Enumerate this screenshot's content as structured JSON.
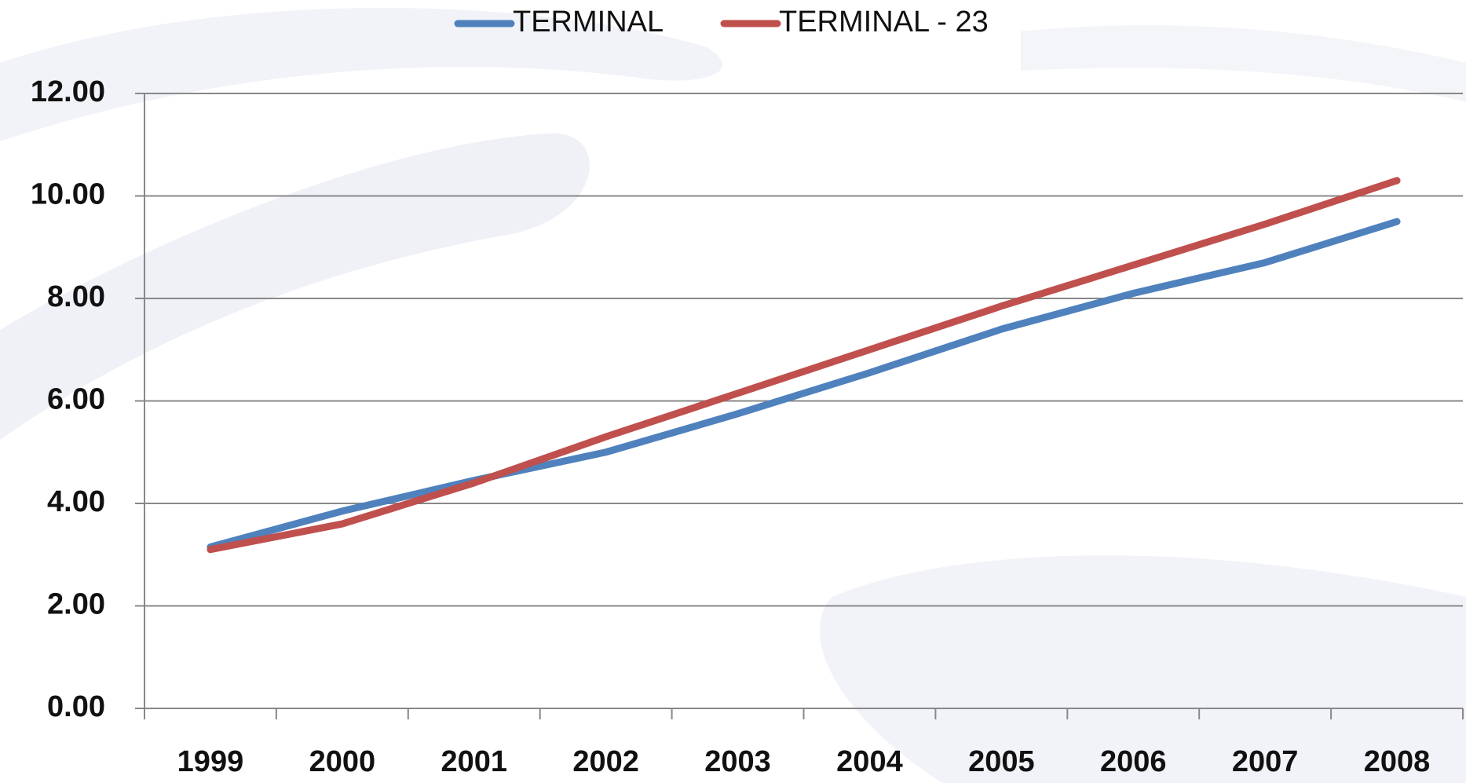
{
  "chart_data": {
    "type": "line",
    "categories": [
      "1999",
      "2000",
      "2001",
      "2002",
      "2003",
      "2004",
      "2005",
      "2006",
      "2007",
      "2008"
    ],
    "series": [
      {
        "name": "TERMINAL",
        "color": "#4f81bd",
        "values": [
          3.15,
          3.85,
          4.45,
          5.0,
          5.75,
          6.55,
          7.4,
          8.1,
          8.7,
          9.5
        ]
      },
      {
        "name": "TERMINAL - 23",
        "color": "#c0504d",
        "values": [
          3.1,
          3.6,
          4.4,
          5.3,
          6.15,
          7.0,
          7.85,
          8.65,
          9.45,
          10.3
        ]
      }
    ],
    "ylim": [
      0,
      12
    ],
    "yticks": [
      {
        "value": 0,
        "label": "0.00"
      },
      {
        "value": 2,
        "label": "2.00"
      },
      {
        "value": 4,
        "label": "4.00"
      },
      {
        "value": 6,
        "label": "6.00"
      },
      {
        "value": 8,
        "label": "8.00"
      },
      {
        "value": 10,
        "label": "10.00"
      },
      {
        "value": 12,
        "label": "12.00"
      }
    ],
    "grid": true,
    "legend": "top"
  }
}
